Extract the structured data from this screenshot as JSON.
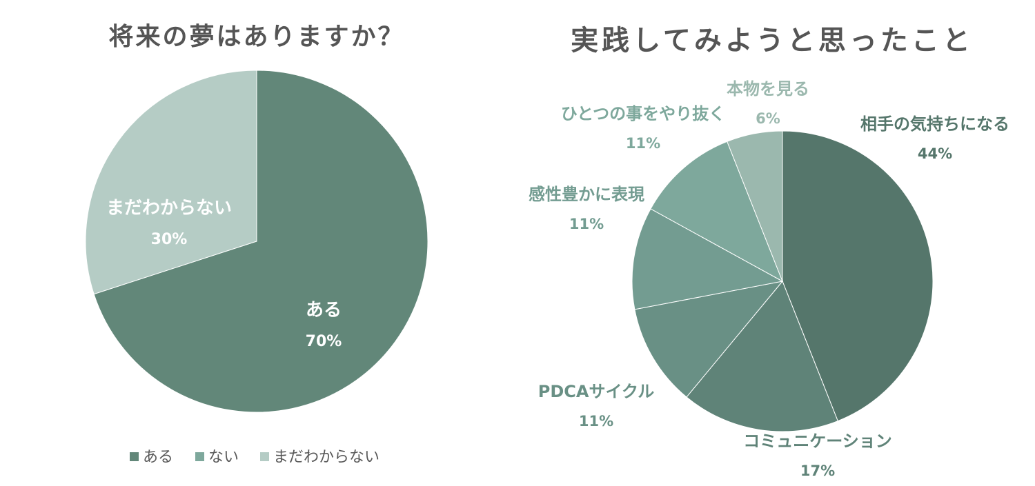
{
  "chart_data": [
    {
      "type": "pie",
      "title": "将来の夢はありますか？",
      "slices": [
        {
          "label": "ある",
          "value": 70,
          "value_label": "70%",
          "color": "#628779"
        },
        {
          "label": "ない",
          "value": 0,
          "value_label": "",
          "color": "#7ea89c"
        },
        {
          "label": "まだわからない",
          "value": 30,
          "value_label": "30%",
          "color": "#b5ccc5"
        }
      ],
      "data_label_color": "#ffffff",
      "legend": {
        "position": "bottom",
        "entries": [
          "ある",
          "ない",
          "まだわからない"
        ]
      }
    },
    {
      "type": "pie",
      "title": "実践してみようと思ったこと",
      "slices": [
        {
          "label": "相手の気持ちになる",
          "value": 44,
          "value_label": "44%",
          "color": "#55766b"
        },
        {
          "label": "コミュニケーション",
          "value": 17,
          "value_label": "17%",
          "color": "#5f8378"
        },
        {
          "label": "PDCAサイクル",
          "value": 11,
          "value_label": "11%",
          "color": "#699085"
        },
        {
          "label": "感性豊かに表現",
          "value": 11,
          "value_label": "11%",
          "color": "#739c91"
        },
        {
          "label": "ひとつの事をやり抜く",
          "value": 11,
          "value_label": "11%",
          "color": "#7ea89c"
        },
        {
          "label": "本物を見る",
          "value": 6,
          "value_label": "6%",
          "color": "#9bb8ae"
        }
      ],
      "data_label_position": "outside",
      "legend": null
    }
  ]
}
